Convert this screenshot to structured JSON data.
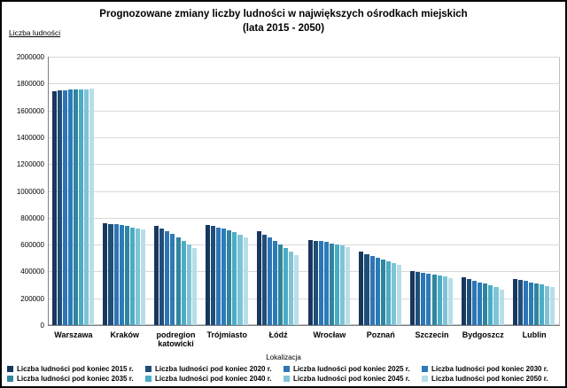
{
  "title_line1": "Prognozowane zmiany liczby ludności w największych ośrodkach miejskich",
  "title_line2": "(lata 2015 - 2050)",
  "chart_data": {
    "type": "bar",
    "title": "Prognozowane zmiany liczby ludności w największych ośrodkach miejskich (lata 2015 - 2050)",
    "ylabel": "Liczba ludności",
    "xlabel": "Lokalizacja",
    "ylim": [
      0,
      2000000
    ],
    "ytick_step": 200000,
    "grid": true,
    "legend_position": "bottom",
    "categories": [
      "Warszawa",
      "Kraków",
      "podregion katowicki",
      "Trójmiasto",
      "Łódź",
      "Wrocław",
      "Poznań",
      "Szczecin",
      "Bydgoszcz",
      "Lublin"
    ],
    "series": [
      {
        "name": "Liczba ludności pod koniec 2015 r.",
        "color": "#17375E",
        "values": [
          1740000,
          760000,
          742000,
          745000,
          700000,
          635000,
          545000,
          405000,
          355000,
          340000
        ]
      },
      {
        "name": "Liczba ludności pod koniec 2020 r.",
        "color": "#1F4E79",
        "values": [
          1748000,
          755000,
          722000,
          738000,
          676000,
          630000,
          530000,
          399000,
          344000,
          334000
        ]
      },
      {
        "name": "Liczba ludności pod koniec 2025 r.",
        "color": "#2E75B6",
        "values": [
          1752000,
          750000,
          700000,
          729000,
          652000,
          625000,
          516000,
          392000,
          332000,
          327000
        ]
      },
      {
        "name": "Liczba ludności pod koniec 2030 r.",
        "color": "#2B7BBA",
        "values": [
          1755000,
          744000,
          678000,
          719000,
          628000,
          618000,
          502000,
          385000,
          320000,
          319000
        ]
      },
      {
        "name": "Liczba ludności pod koniec 2035 r.",
        "color": "#31859C",
        "values": [
          1757000,
          737000,
          654000,
          706000,
          602000,
          610000,
          488000,
          377000,
          307000,
          311000
        ]
      },
      {
        "name": "Liczba ludności pod koniec 2040 r.",
        "color": "#4BACC6",
        "values": [
          1758000,
          729000,
          629000,
          691000,
          576000,
          601000,
          475000,
          369000,
          294000,
          302000
        ]
      },
      {
        "name": "Liczba ludności pod koniec 2045 r.",
        "color": "#7FC4D6",
        "values": [
          1759000,
          720000,
          603000,
          674000,
          549000,
          592000,
          462000,
          361000,
          281000,
          293000
        ]
      },
      {
        "name": "Liczba ludności pod koniec 2050 r.",
        "color": "#B7DEE8",
        "values": [
          1760000,
          710000,
          576000,
          656000,
          521000,
          582000,
          450000,
          353000,
          267000,
          284000
        ]
      }
    ]
  }
}
